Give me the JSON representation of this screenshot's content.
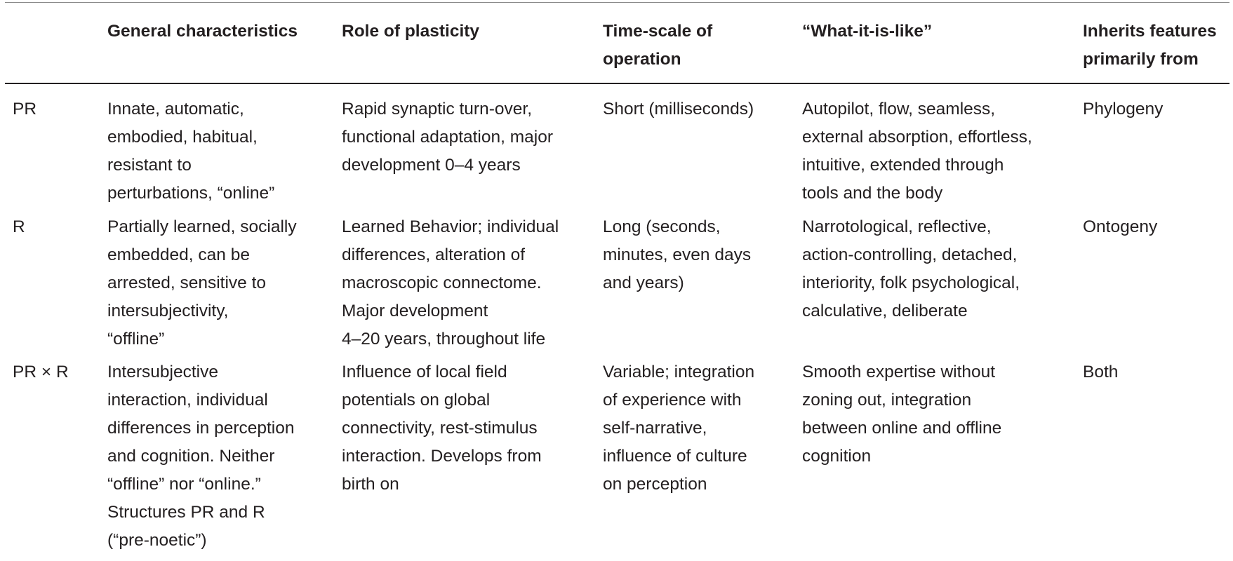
{
  "table": {
    "headers": [
      "",
      "General characteristics",
      "Role of plasticity",
      "Time-scale of\noperation",
      "“What-it-is-like”",
      "Inherits features\nprimarily from"
    ],
    "rows": [
      {
        "label": "PR",
        "general": "Innate, automatic,\nembodied, habitual,\nresistant to\nperturbations, “online”",
        "plasticity": "Rapid synaptic turn-over,\nfunctional adaptation, major\ndevelopment 0–4 years",
        "timescale": "Short (milliseconds)",
        "what_it_is_like": "Autopilot, flow, seamless,\nexternal absorption, effortless,\nintuitive, extended through\ntools and the body",
        "inherits": "Phylogeny"
      },
      {
        "label": "R",
        "general": "Partially learned, socially\nembedded, can be\narrested, sensitive to\nintersubjectivity,\n“offline”",
        "plasticity": "Learned Behavior; individual\ndifferences, alteration of\nmacroscopic connectome.\nMajor development\n4–20 years, throughout life",
        "timescale": "Long (seconds,\nminutes, even days\nand years)",
        "what_it_is_like": "Narrotological, reflective,\naction-controlling, detached,\ninteriority, folk psychological,\ncalculative, deliberate",
        "inherits": "Ontogeny"
      },
      {
        "label": "PR × R",
        "general": "Intersubjective\ninteraction, individual\ndifferences in perception\nand cognition. Neither\n“offline” nor “online.”\nStructures PR and R\n(“pre-noetic”)",
        "plasticity": "Influence of local field\npotentials on global\nconnectivity, rest-stimulus\ninteraction. Develops from\nbirth on",
        "timescale": "Variable; integration\nof experience with\nself-narrative,\ninfluence of culture\non perception",
        "what_it_is_like": "Smooth expertise without\nzoning out, integration\nbetween online and offline\ncognition",
        "inherits": "Both"
      }
    ]
  }
}
